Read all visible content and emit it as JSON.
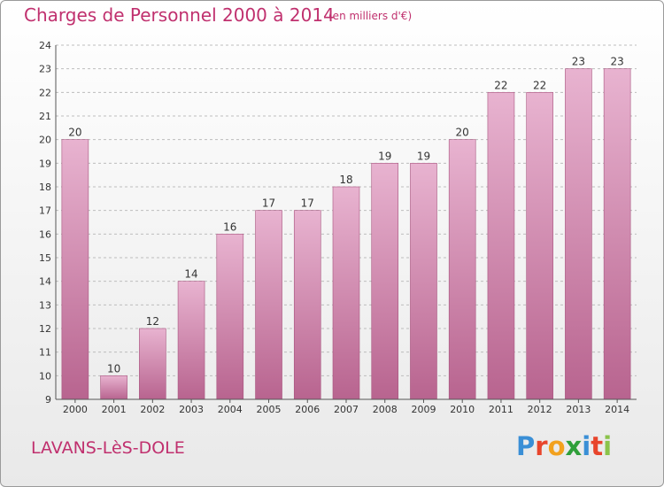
{
  "title": "Charges de Personnel 2000 à 2014",
  "subtitle": "(en milliers d'€)",
  "town": "LAVANS-LèS-DOLE",
  "logo": {
    "letters": [
      "P",
      "r",
      "o",
      "x",
      "i",
      "t",
      "i"
    ],
    "colors": [
      "#3a8fd6",
      "#e8452c",
      "#f2a11e",
      "#2f9f3a",
      "#3a8fd6",
      "#e8452c",
      "#8bc34a"
    ]
  },
  "colors": {
    "bar": "#d98fb6",
    "bar_light": "#e8b3d0",
    "bar_dark": "#b8648f",
    "grid": "#bdbdbd",
    "accent": "#c0306e"
  },
  "chart_data": {
    "type": "bar",
    "categories": [
      "2000",
      "2001",
      "2002",
      "2003",
      "2004",
      "2005",
      "2006",
      "2007",
      "2008",
      "2009",
      "2010",
      "2011",
      "2012",
      "2013",
      "2014"
    ],
    "values": [
      20,
      10,
      12,
      14,
      16,
      17,
      17,
      18,
      19,
      19,
      20,
      22,
      22,
      23,
      23
    ],
    "ylim": [
      9,
      24
    ],
    "yticks": [
      9,
      10,
      11,
      12,
      13,
      14,
      15,
      16,
      17,
      18,
      19,
      20,
      21,
      22,
      23,
      24
    ],
    "grid": true,
    "title": "Charges de Personnel 2000 à 2014",
    "xlabel": "",
    "ylabel": ""
  }
}
